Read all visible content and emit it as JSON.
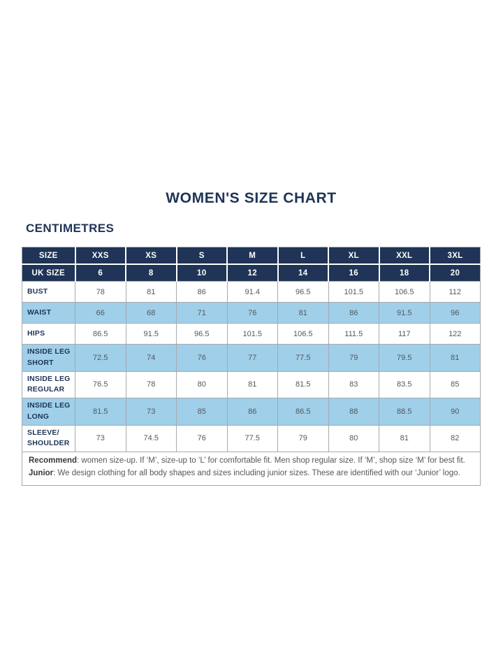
{
  "page": {
    "title": "WOMEN'S SIZE CHART",
    "unit_label": "CENTIMETRES"
  },
  "colors": {
    "header_navy": "#1f3456",
    "highlight_blue": "#9fcfe9",
    "border_gray": "#a7a9ac",
    "body_text_gray": "#54575c"
  },
  "chart_data": {
    "type": "table",
    "size_row_label": "SIZE",
    "uk_row_label": "UK SIZE",
    "sizes": [
      "XXS",
      "XS",
      "S",
      "M",
      "L",
      "XL",
      "XXL",
      "3XL"
    ],
    "uk_sizes": [
      "6",
      "8",
      "10",
      "12",
      "14",
      "16",
      "18",
      "20"
    ],
    "rows": [
      {
        "label": "BUST",
        "highlight": false,
        "values": [
          "78",
          "81",
          "86",
          "91.4",
          "96.5",
          "101.5",
          "106.5",
          "112"
        ]
      },
      {
        "label": "WAIST",
        "highlight": true,
        "values": [
          "66",
          "68",
          "71",
          "76",
          "81",
          "86",
          "91.5",
          "96"
        ]
      },
      {
        "label": "HIPS",
        "highlight": false,
        "values": [
          "86.5",
          "91.5",
          "96.5",
          "101.5",
          "106.5",
          "111.5",
          "117",
          "122"
        ]
      },
      {
        "label": "INSIDE LEG SHORT",
        "highlight": true,
        "values": [
          "72.5",
          "74",
          "76",
          "77",
          "77.5",
          "79",
          "79.5",
          "81"
        ]
      },
      {
        "label": "INSIDE LEG REGULAR",
        "highlight": false,
        "values": [
          "76.5",
          "78",
          "80",
          "81",
          "81.5",
          "83",
          "83.5",
          "85"
        ]
      },
      {
        "label": "INSIDE LEG LONG",
        "highlight": true,
        "values": [
          "81.5",
          "73",
          "85",
          "86",
          "86.5",
          "88",
          "88.5",
          "90"
        ]
      },
      {
        "label": "SLEEVE/ SHOULDER",
        "highlight": false,
        "values": [
          "73",
          "74.5",
          "76",
          "77.5",
          "79",
          "80",
          "81",
          "82"
        ]
      }
    ]
  },
  "footnotes": [
    {
      "term": "Recommend",
      "text": ": women size-up. If ‘M’, size-up to ‘L’ for comfortable fit. Men shop regular size. If ‘M’, shop size ‘M’ for best fit."
    },
    {
      "term": "Junior",
      "text": ": We design clothing for all body shapes and sizes including junior sizes. These are identified with our ‘Junior’ logo."
    }
  ]
}
